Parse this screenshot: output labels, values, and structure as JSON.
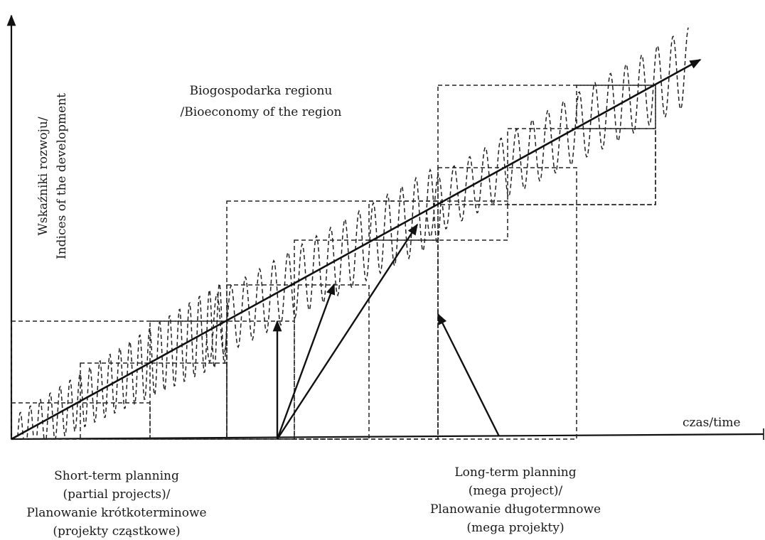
{
  "title_pl": "Biogospodarka regionu",
  "title_en": "/Bioeconomy of the region",
  "y_axis_label_pl": "Wskaźniki rozwoju/",
  "y_axis_label_en": "Indices of the development",
  "x_axis_label": "czas/time",
  "short_term": {
    "line1": "Short-term planning",
    "line2": "(partial projects)/",
    "line3": "Planowanie krótkoterminowe",
    "line4": "(projekty cząstkowe)"
  },
  "long_term": {
    "line1": "Long-term planning",
    "line2": "(mega project)/",
    "line3": "Planowanie długotermnowe",
    "line4": "(mega projekty)"
  }
}
